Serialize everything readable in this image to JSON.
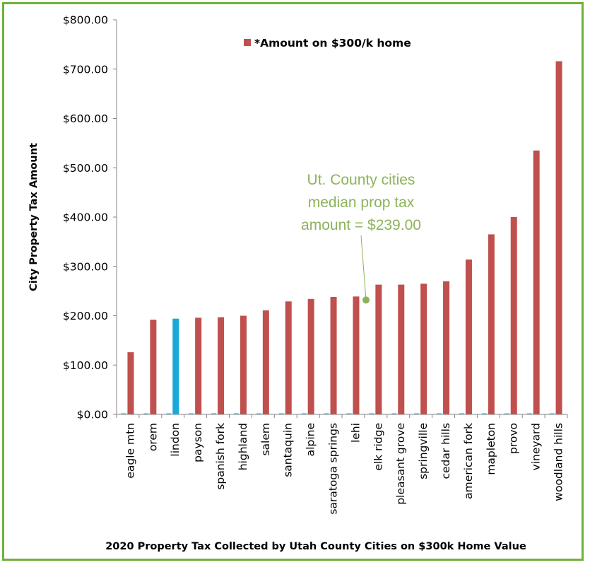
{
  "chart_data": {
    "type": "bar",
    "title": "",
    "xlabel": "2020 Property Tax Collected by Utah County Cities on $300k Home Value",
    "ylabel": "City Property Tax Amount",
    "ylim": [
      0,
      800
    ],
    "yticks": [
      "$0.00",
      "$100.00",
      "$200.00",
      "$300.00",
      "$400.00",
      "$500.00",
      "$600.00",
      "$700.00",
      "$800.00"
    ],
    "ytick_values": [
      0,
      100,
      200,
      300,
      400,
      500,
      600,
      700,
      800
    ],
    "grid": false,
    "legend_position": "top",
    "categories": [
      "eagle mtn",
      "orem",
      "lindon",
      "payson",
      "spanish fork",
      "highland",
      "salem",
      "santaquin",
      "alpine",
      "saratoga springs",
      "lehi",
      "elk ridge",
      "pleasant grove",
      "springville",
      "cedar hills",
      "american fork",
      "mapleton",
      "provo",
      "vineyard",
      "woodland hills"
    ],
    "series": [
      {
        "name": "*Amount on $300/k home",
        "color": "#c0504d",
        "highlight_color": "#1aa9d8",
        "highlight_category": "lindon",
        "values": [
          126,
          192,
          194,
          196,
          197,
          200,
          211,
          229,
          234,
          238,
          239,
          263,
          263,
          265,
          270,
          314,
          365,
          400,
          535,
          716
        ]
      }
    ],
    "annotation": {
      "lines": [
        "Ut. County cities",
        "median prop tax",
        "amount = $239.00"
      ],
      "color": "#8db35a",
      "points_to_value": 239
    }
  }
}
